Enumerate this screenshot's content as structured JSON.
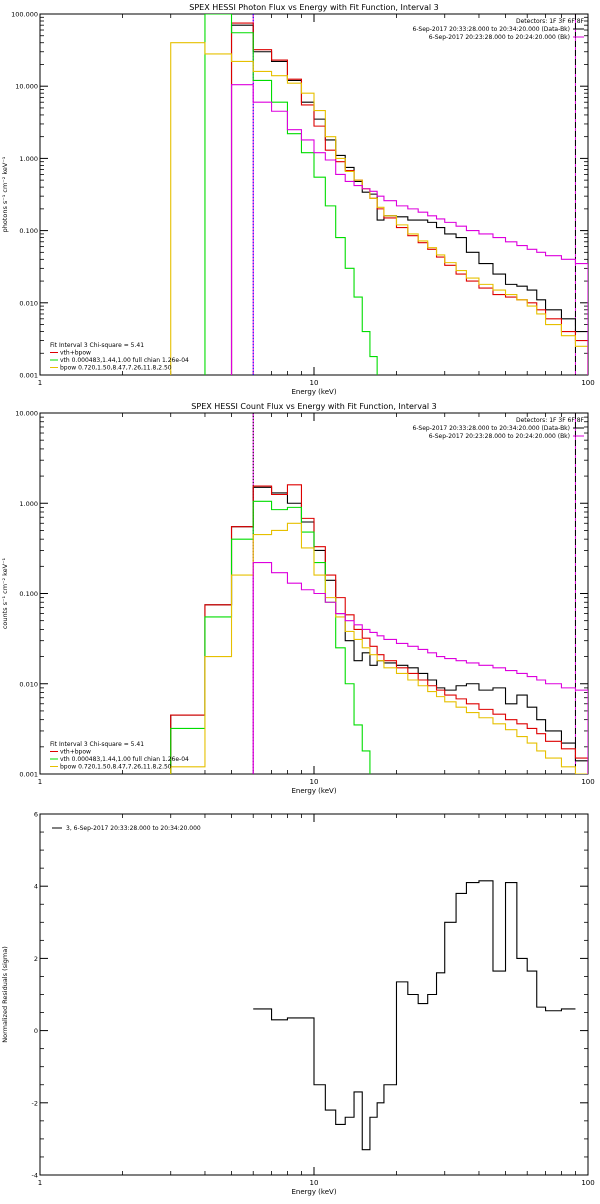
{
  "colors": {
    "data": "#000000",
    "total_fit": "#dd0000",
    "vth": "#00dd00",
    "bpow": "#e6c000",
    "background": "#dd00dd",
    "range_marker": "#0000ff"
  },
  "chart_data": [
    {
      "type": "line",
      "title": "SPEX HESSI Photon Flux vs Energy with Fit Function, Interval 3",
      "xlabel": "Energy (keV)",
      "ylabel": "photons s⁻¹ cm⁻² keV⁻¹",
      "xlim": [
        1,
        100
      ],
      "ylim": [
        0.001,
        100
      ],
      "xscale": "log",
      "yscale": "log",
      "xticks": [
        {
          "v": 1,
          "label": "1"
        },
        {
          "v": 10,
          "label": "10"
        },
        {
          "v": 100,
          "label": "100"
        }
      ],
      "yticks": [
        {
          "v": 0.001,
          "label": "0.001"
        },
        {
          "v": 0.01,
          "label": "0.010"
        },
        {
          "v": 0.1,
          "label": "0.100"
        },
        {
          "v": 1,
          "label": "1.000"
        },
        {
          "v": 10,
          "label": "10.000"
        },
        {
          "v": 100,
          "label": "100.000"
        }
      ],
      "legend_right": [
        "Detectors: 1F 3F 6F 8F",
        "6-Sep-2017 20:33:28.000 to 20:34:20.000 (Data-Bk)",
        "6-Sep-2017 20:23:28.000 to 20:24:20.000 (Bk)"
      ],
      "legend_left": [
        "Fit Interval 3   Chi-square = 5.41",
        "vth+bpow",
        "vth 0.000483,1.44,1.00  full chian 1.26e-04",
        "bpow 0.720,1.50,8.47,7.26,11.8,2.50"
      ],
      "bin_edges": [
        3,
        4,
        5,
        6,
        7,
        8,
        9,
        10,
        11,
        12,
        13,
        14,
        15,
        16,
        17,
        18,
        20,
        22,
        24,
        26,
        28,
        30,
        33,
        36,
        40,
        45,
        50,
        55,
        60,
        65,
        70,
        80,
        90,
        100
      ],
      "series": [
        {
          "name": "Data-Bk",
          "color_key": "data",
          "values": [
            null,
            null,
            70,
            30,
            22,
            12,
            6,
            3.5,
            1.8,
            1.1,
            0.75,
            0.48,
            0.34,
            0.32,
            0.14,
            0.16,
            0.155,
            0.14,
            0.14,
            0.13,
            0.11,
            0.09,
            0.08,
            0.05,
            0.035,
            0.025,
            0.018,
            0.017,
            0.015,
            0.011,
            0.008,
            0.006,
            0.004
          ]
        },
        {
          "name": "vth+bpow",
          "color_key": "total_fit",
          "values": [
            null,
            null,
            75,
            32,
            23,
            12.5,
            5.5,
            2.8,
            1.3,
            0.9,
            0.68,
            0.5,
            0.38,
            0.28,
            0.2,
            0.15,
            0.11,
            0.085,
            0.068,
            0.055,
            0.043,
            0.033,
            0.025,
            0.02,
            0.016,
            0.013,
            0.012,
            0.011,
            0.01,
            0.008,
            0.006,
            0.004,
            0.003
          ]
        },
        {
          "name": "vth",
          "color_key": "vth",
          "values": [
            null,
            100,
            55,
            12,
            6,
            2.2,
            1.2,
            0.55,
            0.22,
            0.08,
            0.03,
            0.012,
            0.004,
            0.0018,
            null,
            null,
            null,
            null,
            null,
            null,
            null,
            null,
            null,
            null,
            null,
            null,
            null,
            null,
            null,
            null,
            null,
            null,
            null
          ]
        },
        {
          "name": "bpow",
          "color_key": "bpow",
          "values": [
            40,
            28,
            22,
            16,
            14,
            11,
            8,
            4.6,
            2.0,
            1.0,
            0.66,
            0.5,
            0.38,
            0.28,
            0.21,
            0.16,
            0.12,
            0.09,
            0.072,
            0.058,
            0.046,
            0.036,
            0.028,
            0.022,
            0.018,
            0.015,
            0.013,
            0.011,
            0.009,
            0.007,
            0.005,
            0.0035,
            0.0025
          ]
        },
        {
          "name": "Bk",
          "color_key": "background",
          "values": [
            null,
            null,
            10.5,
            6,
            4.5,
            2.5,
            1.8,
            1.2,
            0.95,
            0.6,
            0.48,
            0.42,
            0.38,
            0.35,
            0.3,
            0.26,
            0.22,
            0.2,
            0.18,
            0.16,
            0.145,
            0.13,
            0.115,
            0.1,
            0.09,
            0.08,
            0.07,
            0.062,
            0.055,
            0.05,
            0.045,
            0.04,
            0.035
          ]
        }
      ],
      "vlines": [
        {
          "x": 6,
          "color_key": "background",
          "style": "solid"
        },
        {
          "x": 6,
          "color_key": "range_marker",
          "style": "dotted"
        },
        {
          "x": 90,
          "color_key": "background",
          "style": "solid"
        },
        {
          "x": 90,
          "color_key": "data",
          "style": "dashed"
        }
      ]
    },
    {
      "type": "line",
      "title": "SPEX HESSI Count Flux vs Energy with Fit Function, Interval 3",
      "xlabel": "Energy (keV)",
      "ylabel": "counts s⁻¹ cm⁻² keV⁻¹",
      "xlim": [
        1,
        100
      ],
      "ylim": [
        0.001,
        10
      ],
      "xscale": "log",
      "yscale": "log",
      "xticks": [
        {
          "v": 1,
          "label": "1"
        },
        {
          "v": 10,
          "label": "10"
        },
        {
          "v": 100,
          "label": "100"
        }
      ],
      "yticks": [
        {
          "v": 0.001,
          "label": "0.001"
        },
        {
          "v": 0.01,
          "label": "0.010"
        },
        {
          "v": 0.1,
          "label": "0.100"
        },
        {
          "v": 1,
          "label": "1.000"
        },
        {
          "v": 10,
          "label": "10.000"
        }
      ],
      "legend_right": [
        "Detectors: 1F 3F 6F 8F",
        "6-Sep-2017 20:33:28.000 to 20:34:20.000 (Data-Bk)",
        "6-Sep-2017 20:23:28.000 to 20:24:20.000 (Bk)"
      ],
      "legend_left": [
        "Fit Interval 3   Chi-square = 5.41",
        "vth+bpow",
        "vth 0.000483,1.44,1.00  full chian 1.26e-04",
        "bpow 0.720,1.50,8.47,7.26,11.8,2.50"
      ],
      "bin_edges": [
        3,
        4,
        5,
        6,
        7,
        8,
        9,
        10,
        11,
        12,
        13,
        14,
        15,
        16,
        17,
        18,
        20,
        22,
        24,
        26,
        28,
        30,
        33,
        36,
        40,
        45,
        50,
        55,
        60,
        65,
        70,
        80,
        90,
        100
      ],
      "series": [
        {
          "name": "Data-Bk",
          "color_key": "data",
          "values": [
            0.0045,
            0.075,
            0.55,
            1.5,
            1.3,
            1.0,
            0.62,
            0.3,
            0.14,
            0.06,
            0.03,
            0.018,
            0.022,
            0.016,
            0.018,
            0.017,
            0.016,
            0.015,
            0.013,
            0.011,
            0.009,
            0.0085,
            0.0095,
            0.01,
            0.0085,
            0.009,
            0.006,
            0.0075,
            0.0055,
            0.004,
            0.003,
            0.0022,
            0.0014
          ]
        },
        {
          "name": "vth+bpow",
          "color_key": "total_fit",
          "values": [
            0.0045,
            0.075,
            0.55,
            1.55,
            1.25,
            1.6,
            0.68,
            0.33,
            0.16,
            0.09,
            0.058,
            0.04,
            0.032,
            0.026,
            0.021,
            0.018,
            0.015,
            0.013,
            0.011,
            0.0095,
            0.0085,
            0.0075,
            0.0068,
            0.006,
            0.0052,
            0.0046,
            0.004,
            0.0036,
            0.0032,
            0.0028,
            0.0023,
            0.0019,
            0.0015
          ]
        },
        {
          "name": "vth",
          "color_key": "vth",
          "values": [
            0.0032,
            0.055,
            0.4,
            1.05,
            0.85,
            0.9,
            0.48,
            0.22,
            0.08,
            0.025,
            0.01,
            0.0035,
            0.0018,
            null,
            null,
            null,
            null,
            null,
            null,
            null,
            null,
            null,
            null,
            null,
            null,
            null,
            null,
            null,
            null,
            null,
            null,
            null,
            null
          ]
        },
        {
          "name": "bpow",
          "color_key": "bpow",
          "values": [
            0.0012,
            0.02,
            0.16,
            0.45,
            0.5,
            0.6,
            0.32,
            0.16,
            0.09,
            0.055,
            0.038,
            0.031,
            0.025,
            0.021,
            0.018,
            0.015,
            0.013,
            0.011,
            0.0095,
            0.0082,
            0.0072,
            0.0063,
            0.0055,
            0.0048,
            0.0042,
            0.0036,
            0.0031,
            0.0026,
            0.0022,
            0.0018,
            0.0015,
            0.0012,
            0.001
          ]
        },
        {
          "name": "Bk",
          "color_key": "background",
          "values": [
            null,
            null,
            null,
            0.22,
            0.17,
            0.13,
            0.11,
            0.1,
            0.08,
            0.06,
            0.05,
            0.045,
            0.04,
            0.037,
            0.034,
            0.031,
            0.028,
            0.026,
            0.024,
            0.022,
            0.02,
            0.019,
            0.018,
            0.017,
            0.016,
            0.015,
            0.014,
            0.013,
            0.012,
            0.011,
            0.01,
            0.009,
            0.0085
          ]
        }
      ],
      "vlines": [
        {
          "x": 6,
          "color_key": "background",
          "style": "solid"
        },
        {
          "x": 6,
          "color_key": "data",
          "style": "dotted"
        },
        {
          "x": 90,
          "color_key": "background",
          "style": "solid"
        },
        {
          "x": 90,
          "color_key": "data",
          "style": "dashed"
        }
      ]
    },
    {
      "type": "line",
      "title": "",
      "xlabel": "Energy (keV)",
      "ylabel": "Normalized Residuals (sigma)",
      "xlim": [
        1,
        100
      ],
      "ylim": [
        -4,
        6
      ],
      "xscale": "log",
      "yscale": "linear",
      "xticks": [
        {
          "v": 1,
          "label": "1"
        },
        {
          "v": 10,
          "label": "10"
        },
        {
          "v": 100,
          "label": "100"
        }
      ],
      "yticks": [
        {
          "v": -4,
          "label": "-4"
        },
        {
          "v": -2,
          "label": "-2"
        },
        {
          "v": 0,
          "label": "0"
        },
        {
          "v": 2,
          "label": "2"
        },
        {
          "v": 4,
          "label": "4"
        },
        {
          "v": 6,
          "label": "6"
        }
      ],
      "legend_left": [
        "3, 6-Sep-2017 20:33:28.000 to 20:34:20.000"
      ],
      "bin_edges": [
        6,
        7,
        8,
        9,
        10,
        11,
        12,
        13,
        14,
        15,
        16,
        17,
        18,
        20,
        22,
        24,
        26,
        28,
        30,
        33,
        36,
        40,
        45,
        50,
        55,
        60,
        65,
        70,
        80,
        90
      ],
      "series": [
        {
          "name": "3, 6-Sep-2017 20:33:28.000 to 20:34:20.000",
          "color_key": "data",
          "values": [
            0.6,
            0.3,
            0.35,
            0.35,
            -1.5,
            -2.2,
            -2.6,
            -2.4,
            -1.7,
            -3.3,
            -2.4,
            -2.0,
            -1.5,
            1.35,
            1.0,
            0.75,
            1.0,
            1.6,
            3.0,
            3.8,
            4.1,
            4.15,
            1.65,
            4.1,
            2.0,
            1.65,
            0.65,
            0.55,
            0.6
          ]
        }
      ],
      "vlines": []
    }
  ]
}
